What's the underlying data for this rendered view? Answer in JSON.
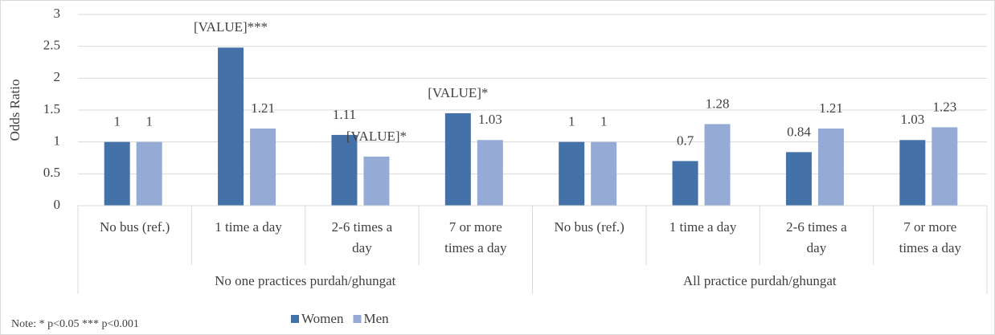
{
  "chart_data": {
    "type": "bar",
    "y_label": "Odds Ratio",
    "note": "Note: * p<0.05 *** p<0.001",
    "groups": [
      {
        "label": "No one practices purdah/ghungat",
        "categories": [
          "No bus (ref.)",
          "1 time a day",
          "2-6 times a day",
          "7 or more times a day"
        ]
      },
      {
        "label": "All practice purdah/ghungat",
        "categories": [
          "No bus (ref.)",
          "1 time a day",
          "2-6 times a day",
          "7 or more times a day"
        ]
      }
    ],
    "series": [
      {
        "name": "Women",
        "color": "#4472a8",
        "values": [
          1,
          2.48,
          1.11,
          1.45,
          1,
          0.7,
          0.84,
          1.03
        ],
        "value_labels": [
          "1",
          "[VALUE]***",
          "1.11",
          "[VALUE]*",
          "1",
          "0.7",
          "0.84",
          "1.03"
        ]
      },
      {
        "name": "Men",
        "color": "#95abd5",
        "values": [
          1,
          1.21,
          0.77,
          1.03,
          1,
          1.28,
          1.21,
          1.23
        ],
        "value_labels": [
          "1",
          "1.21",
          "[VALUE]*",
          "1.03",
          "1",
          "1.28",
          "1.21",
          "1.23"
        ]
      }
    ],
    "ylim": [
      0,
      3
    ],
    "yticks": [
      0,
      0.5,
      1,
      1.5,
      2,
      2.5,
      3
    ],
    "grid": true,
    "legend": "bottom"
  }
}
